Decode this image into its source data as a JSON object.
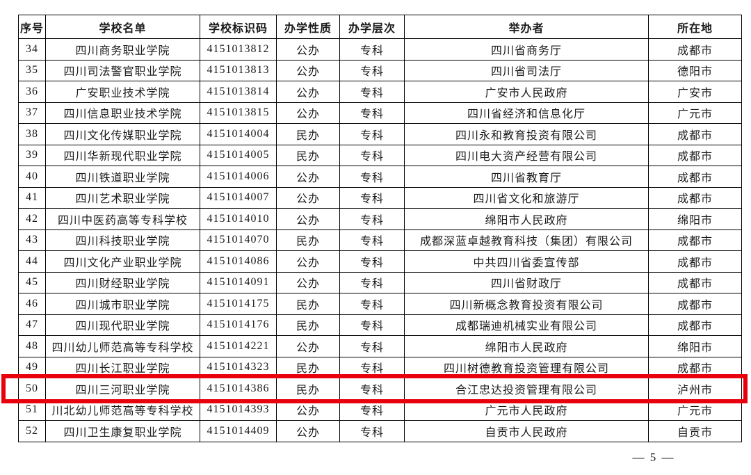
{
  "document": {
    "columns": [
      "序号",
      "学校名单",
      "学校标识码",
      "办学性质",
      "办学层次",
      "举办者",
      "所在地"
    ],
    "rows": [
      {
        "no": "34",
        "name": "四川商务职业学院",
        "code": "4151013812",
        "nature": "公办",
        "level": "专科",
        "organizer": "四川省商务厅",
        "location": "成都市",
        "highlight": false
      },
      {
        "no": "35",
        "name": "四川司法警官职业学院",
        "code": "4151013813",
        "nature": "公办",
        "level": "专科",
        "organizer": "四川省司法厅",
        "location": "德阳市",
        "highlight": false
      },
      {
        "no": "36",
        "name": "广安职业技术学院",
        "code": "4151013814",
        "nature": "公办",
        "level": "专科",
        "organizer": "广安市人民政府",
        "location": "广安市",
        "highlight": false
      },
      {
        "no": "37",
        "name": "四川信息职业技术学院",
        "code": "4151013815",
        "nature": "公办",
        "level": "专科",
        "organizer": "四川省经济和信息化厅",
        "location": "广元市",
        "highlight": false
      },
      {
        "no": "38",
        "name": "四川文化传媒职业学院",
        "code": "4151014004",
        "nature": "民办",
        "level": "专科",
        "organizer": "四川永和教育投资有限公司",
        "location": "成都市",
        "highlight": false
      },
      {
        "no": "39",
        "name": "四川华新现代职业学院",
        "code": "4151014005",
        "nature": "民办",
        "level": "专科",
        "organizer": "四川电大资产经营有限公司",
        "location": "成都市",
        "highlight": false
      },
      {
        "no": "40",
        "name": "四川铁道职业学院",
        "code": "4151014006",
        "nature": "公办",
        "level": "专科",
        "organizer": "四川省教育厅",
        "location": "成都市",
        "highlight": false
      },
      {
        "no": "41",
        "name": "四川艺术职业学院",
        "code": "4151014007",
        "nature": "公办",
        "level": "专科",
        "organizer": "四川省文化和旅游厅",
        "location": "成都市",
        "highlight": false
      },
      {
        "no": "42",
        "name": "四川中医药高等专科学校",
        "code": "4151014010",
        "nature": "公办",
        "level": "专科",
        "organizer": "绵阳市人民政府",
        "location": "绵阳市",
        "highlight": false
      },
      {
        "no": "43",
        "name": "四川科技职业学院",
        "code": "4151014070",
        "nature": "民办",
        "level": "专科",
        "organizer": "成都深蓝卓越教育科技（集团）有限公司",
        "location": "成都市",
        "highlight": false
      },
      {
        "no": "44",
        "name": "四川文化产业职业学院",
        "code": "4151014086",
        "nature": "公办",
        "level": "专科",
        "organizer": "中共四川省委宣传部",
        "location": "成都市",
        "highlight": false
      },
      {
        "no": "45",
        "name": "四川财经职业学院",
        "code": "4151014091",
        "nature": "公办",
        "level": "专科",
        "organizer": "四川省财政厅",
        "location": "成都市",
        "highlight": false
      },
      {
        "no": "46",
        "name": "四川城市职业学院",
        "code": "4151014175",
        "nature": "民办",
        "level": "专科",
        "organizer": "四川新概念教育投资有限公司",
        "location": "成都市",
        "highlight": false
      },
      {
        "no": "47",
        "name": "四川现代职业学院",
        "code": "4151014176",
        "nature": "民办",
        "level": "专科",
        "organizer": "成都瑞迪机械实业有限公司",
        "location": "成都市",
        "highlight": false
      },
      {
        "no": "48",
        "name": "四川幼儿师范高等专科学校",
        "code": "4151014221",
        "nature": "公办",
        "level": "专科",
        "organizer": "绵阳市人民政府",
        "location": "绵阳市",
        "highlight": false
      },
      {
        "no": "49",
        "name": "四川长江职业学院",
        "code": "4151014323",
        "nature": "民办",
        "level": "专科",
        "organizer": "四川树德教育投资管理有限公司",
        "location": "成都市",
        "highlight": false
      },
      {
        "no": "50",
        "name": "四川三河职业学院",
        "code": "4151014386",
        "nature": "民办",
        "level": "专科",
        "organizer": "合江忠达投资管理有限公司",
        "location": "泸州市",
        "highlight": true
      },
      {
        "no": "51",
        "name": "川北幼儿师范高等专科学校",
        "code": "4151014393",
        "nature": "公办",
        "level": "专科",
        "organizer": "广元市人民政府",
        "location": "广元市",
        "highlight": false
      },
      {
        "no": "52",
        "name": "四川卫生康复职业学院",
        "code": "4151014409",
        "nature": "公办",
        "level": "专科",
        "organizer": "自贡市人民政府",
        "location": "自贡市",
        "highlight": false
      }
    ],
    "page_number": "— 5 —"
  },
  "colors": {
    "highlight_border": "#e8000d",
    "table_border": "#000000",
    "text_color": "#1a1a1a"
  }
}
